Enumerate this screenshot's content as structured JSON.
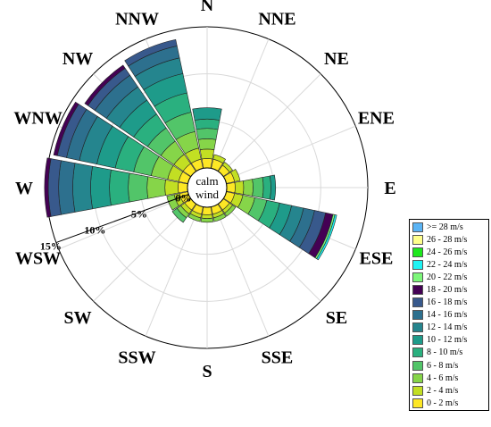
{
  "chart_data": {
    "type": "wind-rose",
    "directions": [
      "N",
      "NNE",
      "NE",
      "ENE",
      "E",
      "ESE",
      "SE",
      "SSE",
      "S",
      "SSW",
      "SW",
      "WSW",
      "W",
      "WNW",
      "NW",
      "NNW"
    ],
    "rlim": [
      0,
      15
    ],
    "radial_ticks": [
      "0%",
      "5%",
      "10%",
      "15%"
    ],
    "grid": true,
    "calm_label": [
      "calm",
      "wind"
    ],
    "legend_position": "right",
    "speed_bins": [
      {
        "label": "0 - 2 m/s",
        "color": "#fde725"
      },
      {
        "label": "2 - 4 m/s",
        "color": "#c2df23"
      },
      {
        "label": "4 - 6 m/s",
        "color": "#86d549"
      },
      {
        "label": "6 - 8 m/s",
        "color": "#52c569"
      },
      {
        "label": "8 - 10 m/s",
        "color": "#2ab07f"
      },
      {
        "label": "10 - 12 m/s",
        "color": "#1e9b8a"
      },
      {
        "label": "12 - 14 m/s",
        "color": "#25858e"
      },
      {
        "label": "14 - 16 m/s",
        "color": "#2d708e"
      },
      {
        "label": "16 - 18 m/s",
        "color": "#38598c"
      },
      {
        "label": "18 - 20 m/s",
        "color": "#440154"
      },
      {
        "label": "20 - 22 m/s",
        "color": "#7df77a"
      },
      {
        "label": "22 - 24 m/s",
        "color": "#1ff3f3"
      },
      {
        "label": "24 - 26 m/s",
        "color": "#1ee81e"
      },
      {
        "label": "26 - 28 m/s",
        "color": "#ffff8c"
      },
      {
        "label": ">= 28 m/s",
        "color": "#5ab4f5"
      }
    ],
    "legend_order": [
      ">= 28 m/s",
      "26 - 28 m/s",
      "24 - 26 m/s",
      "22 - 24 m/s",
      "20 - 22 m/s",
      "18 - 20 m/s",
      "16 - 18 m/s",
      "14 - 16 m/s",
      "12 - 14 m/s",
      "10 - 12 m/s",
      "8 - 10 m/s",
      "6 - 8 m/s",
      "4 - 6 m/s",
      "2 - 4 m/s",
      "0 - 2 m/s"
    ],
    "frequencies_percent": {
      "N": [
        1.0,
        2.0,
        3.1,
        4.2,
        5.2,
        6.4
      ],
      "NNE": [
        1.0,
        1.5
      ],
      "NE": [
        0.8,
        1.2
      ],
      "ENE": [
        0.9,
        1.5
      ],
      "E": [
        0.9,
        1.8,
        2.8,
        3.9,
        4.7,
        5.2
      ],
      "ESE": [
        0.9,
        1.8,
        3.1,
        4.4,
        5.8,
        7.1,
        8.4,
        9.6,
        10.8,
        11.6,
        11.8,
        12.0
      ],
      "SE": [
        0.8,
        1.2,
        1.6
      ],
      "SSE": [
        0.8,
        1.2,
        1.6
      ],
      "S": [
        0.8,
        1.2,
        1.6
      ],
      "SSW": [
        0.8,
        1.2,
        1.6
      ],
      "SW": [
        0.8,
        1.3,
        1.8,
        2.4
      ],
      "WSW": [
        0.9,
        1.5,
        2.3
      ],
      "W": [
        1.0,
        2.4,
        4.3,
        6.3,
        8.3,
        10.3,
        12.2,
        13.7,
        14.8,
        15.2
      ],
      "WNW": [
        1.0,
        2.2,
        4.0,
        5.9,
        7.9,
        9.9,
        11.8,
        13.2,
        14.2,
        14.6
      ],
      "NW": [
        1.0,
        2.2,
        3.9,
        5.6,
        7.4,
        9.2,
        10.9,
        12.4,
        13.3,
        13.7
      ],
      "NNW": [
        1.0,
        2.2,
        4.0,
        6.1,
        8.2,
        10.3,
        12.0,
        13.3,
        14.0
      ]
    }
  }
}
